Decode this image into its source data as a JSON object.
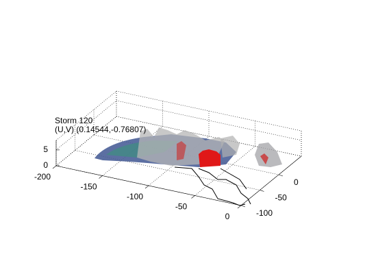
{
  "chart_data": {
    "type": "volume3d",
    "title": "Storm 120",
    "subtitle": "(U,V) (0.14544,-0.76807)",
    "xlim": [
      -200,
      0
    ],
    "xticks": [
      -200,
      -150,
      -100,
      -50,
      0
    ],
    "ylim": [
      -100,
      60
    ],
    "yticks": [
      -100,
      -50,
      0
    ],
    "zlim": [
      0,
      8
    ],
    "zticks": [
      0,
      5
    ],
    "grid": true
  }
}
